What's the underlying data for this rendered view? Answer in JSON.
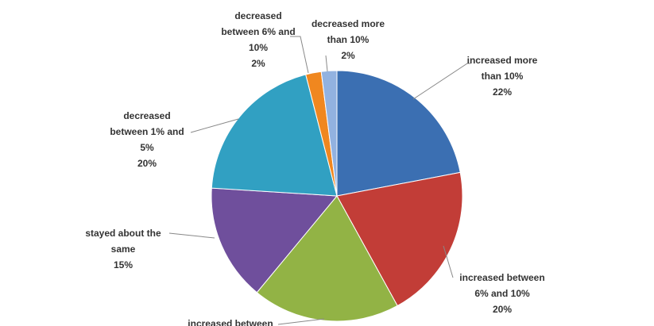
{
  "chart_data": {
    "type": "pie",
    "categories": [
      "increased more than 10%",
      "increased between 6% and 10%",
      "increased between",
      "stayed about the same",
      "decreased between 1% and 5%",
      "decreased between 6% and 10%",
      "decreased more than 10%"
    ],
    "values": [
      22,
      20,
      19,
      15,
      20,
      2,
      2
    ],
    "value_labels": [
      "22%",
      "20%",
      null,
      "15%",
      "20%",
      "2%",
      "2%"
    ],
    "colors": [
      "#3b6fb2",
      "#c23d37",
      "#92b345",
      "#6f4f9c",
      "#31a0c2",
      "#f0871f",
      "#92b2e0"
    ]
  }
}
